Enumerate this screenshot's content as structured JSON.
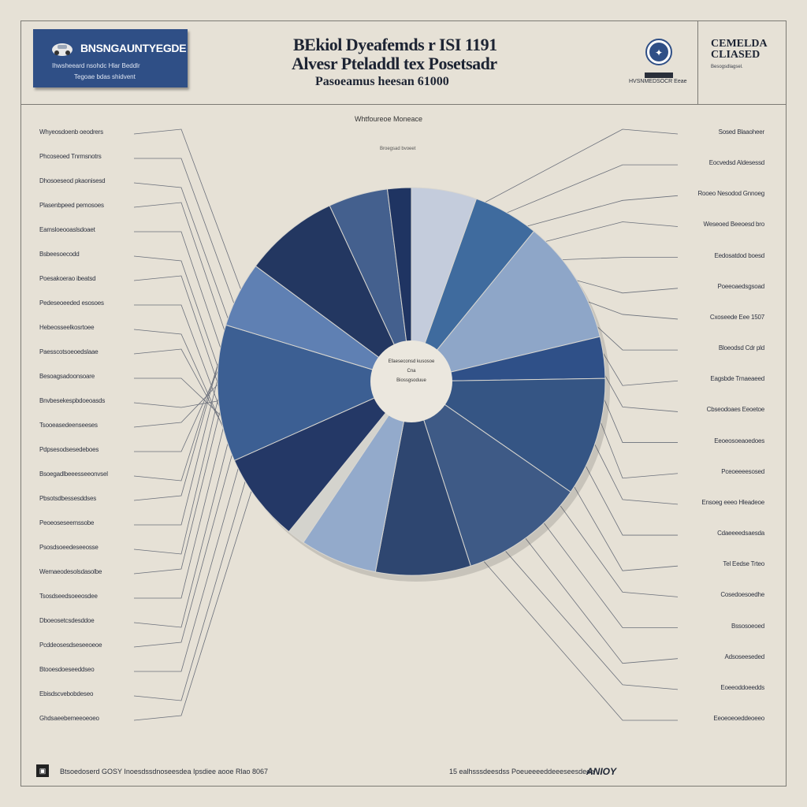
{
  "header": {
    "brand_name": "BNSNGAUNTYEGDE",
    "brand_sub": "Ihwsheeard nsohdc Hlar Beddlr",
    "brand_sub2": "Tegoae bdas shidvent",
    "title_line1": "BEkiol Dyeafemds r ISI 1191",
    "title_line2": "Alvesr Pteladdl tex Posetsadr",
    "title_line3": "Pasoeamus heesan 61000",
    "seal_caption": "HVSNMEDSOCR Eeae",
    "right_title1": "CEMELDA",
    "right_title2": "CLIASED",
    "right_sub": "Besogsdlagsel."
  },
  "chart_data": {
    "type": "pie",
    "title": "Whtfoureoe Moneace",
    "subtitle": "Broegsad bvoeet",
    "center_label": [
      "Efaeseconsd kusosoe",
      "Cna",
      "Biossgsoduue"
    ],
    "slices": [
      {
        "value": 5.5,
        "color": "#c4ccdc"
      },
      {
        "value": 5.5,
        "color": "#3f6b9e"
      },
      {
        "value": 10.5,
        "color": "#8ea6c8"
      },
      {
        "value": 3.5,
        "color": "#2f5088"
      },
      {
        "value": 10,
        "color": "#355584"
      },
      {
        "value": 10.5,
        "color": "#3e5a86"
      },
      {
        "value": 8,
        "color": "#2e4670"
      },
      {
        "value": 6.5,
        "color": "#93aacb"
      },
      {
        "value": 1.5,
        "color": "#d4d3cd"
      },
      {
        "value": 7.5,
        "color": "#243866"
      },
      {
        "value": 11.5,
        "color": "#3c5f93"
      },
      {
        "value": 5.5,
        "color": "#5f80b3"
      },
      {
        "value": 8,
        "color": "#233761"
      },
      {
        "value": 5,
        "color": "#44608e"
      },
      {
        "value": 2,
        "color": "#1f3462"
      }
    ],
    "left_labels": [
      "Whyeosdoenb oeodrers",
      "Phcoseoed Tnrmsnotrs",
      "Dhosoeseod pkaonisesd",
      "Plasenbpeed pemosoes",
      "Eamsloeooaslsdoaet",
      "Bsbeesoecodd",
      "Poesakoerao ibeatsd",
      "Pedeseoeeded esosoes",
      "Hebeosseelkosrtoee",
      "Paesscotsoeoedslaae",
      "Besoagsadoonsoare",
      "Bnvbesekespbdoeoasds",
      "Tsooeasedeenseeses",
      "Pdpsesodsesedeboes",
      "Bsoegadlbeeesseeonvsel",
      "Pbsotsdbessesddses",
      "Peoeoseseemssobe",
      "Psosdsoeedeseeosse",
      "Wemaeodesolsdasolbe",
      "Tsosdseedsoeeosdee",
      "Dboeosetcsdesddoe",
      "Pcddeosesdseseeoeoe",
      "Btooesdoeseeddseo",
      "Ebisdscvebobdeseo",
      "Ghdsaeebemeeoeoeo"
    ],
    "right_labels": [
      "Sosed Blaaoheer",
      "Eocvedsd Aldesessd",
      "Rooeo Nesodod Gnnoeg",
      "Weseoed Beeoesd bro",
      "Eedosatdod boesd",
      "Poeeoaedsgsoad",
      "Cxoseede Eee 1507",
      "Bloeodsd Cdr pld",
      "Eagsbde Trnaeaeed",
      "Cbseodoaes Eeoetoe",
      "Eeoeosoeaoedoes",
      "Pceoeeeesosed",
      "Ensoeg eeeo Hleadeoe",
      "Cdaeeeedsaesda",
      "Tel Eedse Trteo",
      "Cosedoesoedhe",
      "Bssosoeoed",
      "Adsoseeseded",
      "Eoeeoddoeedds",
      "Eeoeoeoeddeoeeo"
    ],
    "legend": "top-right"
  },
  "footer": {
    "icon": "▣",
    "left_text": "Btsoedoserd GOSY Inoesdssdnoseesdea Ipsdiee aooe Rlao 8067",
    "right_text": "15 ealhsssdeesdss Poeueeeeddeeeseesdeee",
    "logo": "ANIOY"
  }
}
